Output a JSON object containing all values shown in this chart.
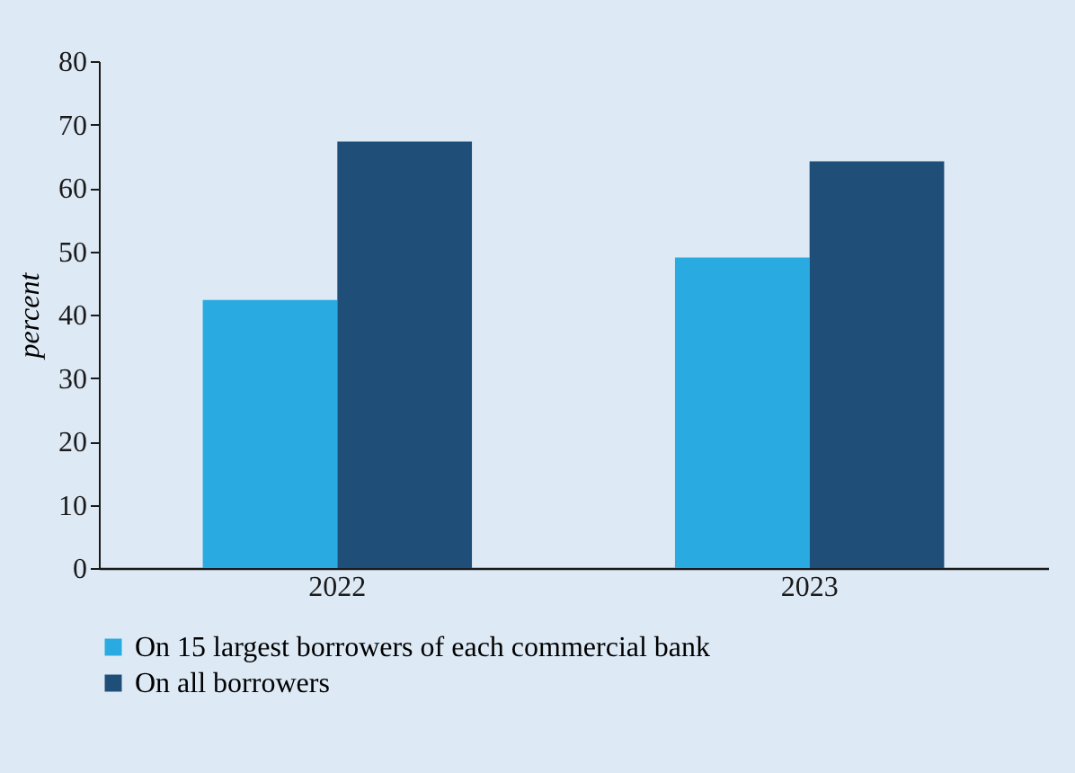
{
  "chart_data": {
    "type": "bar",
    "ylabel": "percent",
    "categories": [
      "2022",
      "2023"
    ],
    "series": [
      {
        "name": "On 15 largest borrowers of each commercial bank",
        "color": "#29aae1",
        "values": [
          42.3,
          49.0
        ]
      },
      {
        "name": "On all borrowers",
        "color": "#1f4e79",
        "values": [
          67.3,
          64.2
        ]
      }
    ],
    "ylim": [
      0,
      80
    ],
    "yticks": [
      0,
      10,
      20,
      30,
      40,
      50,
      60,
      70,
      80
    ],
    "grid": false,
    "legend": "bottom"
  }
}
